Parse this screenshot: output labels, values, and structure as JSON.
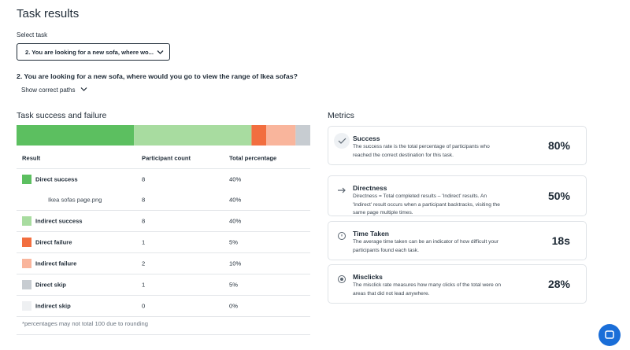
{
  "header": {
    "title": "Task results",
    "select_label": "Select task",
    "select_value": "2. You are looking for a new sofa, where wo...",
    "question": "2. You are looking for a new sofa, where would you go to view the range of Ikea sofas?",
    "show_paths": "Show correct paths"
  },
  "table": {
    "title": "Task success and failure",
    "columns": [
      "Result",
      "Participant count",
      "Total percentage"
    ],
    "rows": [
      {
        "result": "Direct success",
        "color": "#5cbf60",
        "count": 8,
        "percentage": {
          "value": 40,
          "label": "40%"
        },
        "paths": [
          {
            "name": "Ikea sofas page.png",
            "count": 8,
            "percentage": {
              "value": 40,
              "label": "40%"
            }
          }
        ]
      },
      {
        "result": "Indirect success",
        "color": "#a8dca0",
        "count": 8,
        "percentage": {
          "value": 40,
          "label": "40%"
        }
      },
      {
        "result": "Direct failure",
        "color": "#f26e3f",
        "count": 1,
        "percentage": {
          "value": 5,
          "label": "5%"
        }
      },
      {
        "result": "Indirect failure",
        "color": "#f9b59c",
        "count": 2,
        "percentage": {
          "value": 10,
          "label": "10%"
        }
      },
      {
        "result": "Direct skip",
        "color": "#c7ccd1",
        "count": 1,
        "percentage": {
          "value": 5,
          "label": "5%"
        }
      },
      {
        "result": "Indirect skip",
        "color": "#eef0f2",
        "count": 0,
        "percentage": {
          "value": 0,
          "label": "0%"
        }
      }
    ],
    "footnote": "*percentages may not total 100 due to rounding"
  },
  "metrics": {
    "title": "Metrics",
    "cards": [
      {
        "name": "Success",
        "description": "The success rate is the total percentage of participants who reached the correct destination for this task.",
        "value": "80%"
      },
      {
        "name": "Directness",
        "description": "Directness = Total completed results – 'Indirect' results. An 'Indirect' result occurs when a participant backtracks, visiting the same page multiple times.",
        "value": "50%"
      },
      {
        "name": "Time Taken",
        "description": "The average time taken can be an indicator of how difficult your participants found each task.",
        "value": "18s"
      },
      {
        "name": "Misclicks",
        "description": "The misclick rate measures how many clicks of the total were on areas that did not lead anywhere.",
        "value": "28%"
      }
    ]
  }
}
